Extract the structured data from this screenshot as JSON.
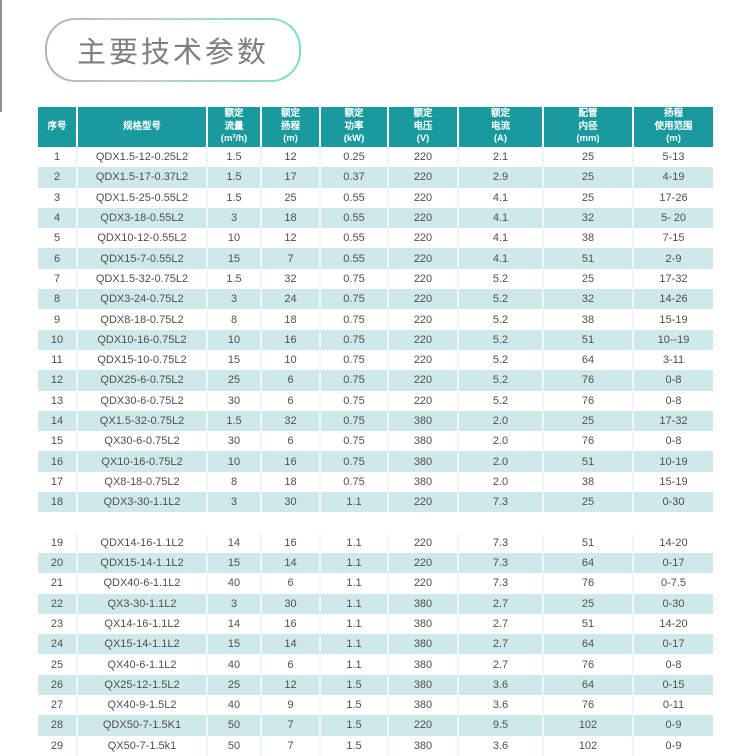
{
  "page_title": {
    "label": "主要技术参数"
  },
  "colors": {
    "header_bg": "#189a9e",
    "row_alt_bg": "#cfe9ea",
    "body_text": "#4f4f4f",
    "header_text": "#ffffff",
    "badge_border_left": "#b4b0ca",
    "badge_border_right": "#7cdfc3",
    "badge_text": "#7f7f7f"
  },
  "table": {
    "headers": [
      "序号",
      "规格型号",
      "额定\n流量\n(m³/h)",
      "额定\n扬程\n(m)",
      "额定\n功率\n(kW)",
      "额定\n电压\n(V)",
      "额定\n电流\n(A)",
      "配管\n内径\n(mm)",
      "扬程\n使用范围\n(m)"
    ],
    "section_break_after_serial": "18",
    "rows": [
      [
        "1",
        "QDX1.5-12-0.25L2",
        "1.5",
        "12",
        "0.25",
        "220",
        "2.1",
        "25",
        "5-13"
      ],
      [
        "2",
        "QDX1.5-17-0.37L2",
        "1.5",
        "17",
        "0.37",
        "220",
        "2.9",
        "25",
        "4-19"
      ],
      [
        "3",
        "QDX1.5-25-0.55L2",
        "1.5",
        "25",
        "0.55",
        "220",
        "4.1",
        "25",
        "17-26"
      ],
      [
        "4",
        "QDX3-18-0.55L2",
        "3",
        "18",
        "0.55",
        "220",
        "4.1",
        "32",
        "5- 20"
      ],
      [
        "5",
        "QDX10-12-0.55L2",
        "10",
        "12",
        "0.55",
        "220",
        "4.1",
        "38",
        "7-15"
      ],
      [
        "6",
        "QDX15-7-0.55L2",
        "15",
        "7",
        "0.55",
        "220",
        "4.1",
        "51",
        "2-9"
      ],
      [
        "7",
        "QDX1.5-32-0.75L2",
        "1.5",
        "32",
        "0.75",
        "220",
        "5.2",
        "25",
        "17-32"
      ],
      [
        "8",
        "QDX3-24-0.75L2",
        "3",
        "24",
        "0.75",
        "220",
        "5.2",
        "32",
        "14-26"
      ],
      [
        "9",
        "QDX8-18-0.75L2",
        "8",
        "18",
        "0.75",
        "220",
        "5.2",
        "38",
        "15-19"
      ],
      [
        "10",
        "QDX10-16-0.75L2",
        "10",
        "16",
        "0.75",
        "220",
        "5.2",
        "51",
        "10--19"
      ],
      [
        "11",
        "QDX15-10-0.75L2",
        "15",
        "10",
        "0.75",
        "220",
        "5.2",
        "64",
        "3-11"
      ],
      [
        "12",
        "QDX25-6-0.75L2",
        "25",
        "6",
        "0.75",
        "220",
        "5.2",
        "76",
        "0-8"
      ],
      [
        "13",
        "QDX30-6-0.75L2",
        "30",
        "6",
        "0.75",
        "220",
        "5.2",
        "76",
        "0-8"
      ],
      [
        "14",
        "QX1.5-32-0.75L2",
        "1.5",
        "32",
        "0.75",
        "380",
        "2.0",
        "25",
        "17-32"
      ],
      [
        "15",
        "QX30-6-0.75L2",
        "30",
        "6",
        "0.75",
        "380",
        "2.0",
        "76",
        "0-8"
      ],
      [
        "16",
        "QX10-16-0.75L2",
        "10",
        "16",
        "0.75",
        "380",
        "2.0",
        "51",
        "10-19"
      ],
      [
        "17",
        "QX8-18-0.75L2",
        "8",
        "18",
        "0.75",
        "380",
        "2.0",
        "38",
        "15-19"
      ],
      [
        "18",
        "QDX3-30-1.1L2",
        "3",
        "30",
        "1.1",
        "220",
        "7.3",
        "25",
        "0-30"
      ],
      [
        "19",
        "QDX14-16-1.1L2",
        "14",
        "16",
        "1.1",
        "220",
        "7.3",
        "51",
        "14-20"
      ],
      [
        "20",
        "QDX15-14-1.1L2",
        "15",
        "14",
        "1.1",
        "220",
        "7.3",
        "64",
        "0-17"
      ],
      [
        "21",
        "QDX40-6-1.1L2",
        "40",
        "6",
        "1.1",
        "220",
        "7.3",
        "76",
        "0-7.5"
      ],
      [
        "22",
        "QX3-30-1.1L2",
        "3",
        "30",
        "1.1",
        "380",
        "2.7",
        "25",
        "0-30"
      ],
      [
        "23",
        "QX14-16-1.1L2",
        "14",
        "16",
        "1.1",
        "380",
        "2.7",
        "51",
        "14-20"
      ],
      [
        "24",
        "QX15-14-1.1L2",
        "15",
        "14",
        "1.1",
        "380",
        "2.7",
        "64",
        "0-17"
      ],
      [
        "25",
        "QX40-6-1.1L2",
        "40",
        "6",
        "1.1",
        "380",
        "2.7",
        "76",
        "0-8"
      ],
      [
        "26",
        "QX25-12-1.5L2",
        "25",
        "12",
        "1.5",
        "380",
        "3.6",
        "64",
        "0-15"
      ],
      [
        "27",
        "QX40-9-1.5L2",
        "40",
        "9",
        "1.5",
        "380",
        "3.6",
        "76",
        "0-11"
      ],
      [
        "28",
        "QDX50-7-1.5K1",
        "50",
        "7",
        "1.5",
        "220",
        "9.5",
        "102",
        "0-9"
      ],
      [
        "29",
        "QX50-7-1.5k1",
        "50",
        "7",
        "1.5",
        "380",
        "3.6",
        "102",
        "0-9"
      ]
    ]
  }
}
